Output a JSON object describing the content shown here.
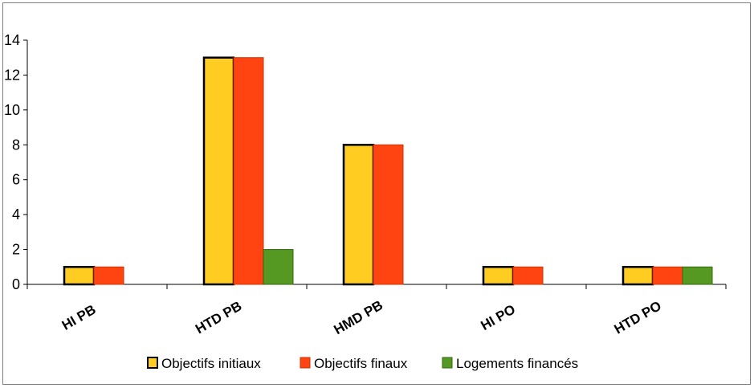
{
  "chart_data": {
    "type": "bar",
    "categories": [
      "HI PB",
      "HTD PB",
      "HMD PB",
      "HI PO",
      "HTD PO"
    ],
    "series": [
      {
        "name": "Objectifs initiaux",
        "values": [
          1,
          13,
          8,
          1,
          1
        ],
        "color": "#FFCC22"
      },
      {
        "name": "Objectifs finaux",
        "values": [
          1,
          13,
          8,
          1,
          1
        ],
        "color": "#FF4411"
      },
      {
        "name": "Logements financés",
        "values": [
          0,
          2,
          0,
          0,
          1
        ],
        "color": "#559922"
      }
    ],
    "title": "",
    "xlabel": "",
    "ylabel": "",
    "ylim": [
      0,
      14
    ],
    "yticks": [
      0,
      2,
      4,
      6,
      8,
      10,
      12,
      14
    ],
    "grid": false,
    "legend_position": "bottom"
  }
}
